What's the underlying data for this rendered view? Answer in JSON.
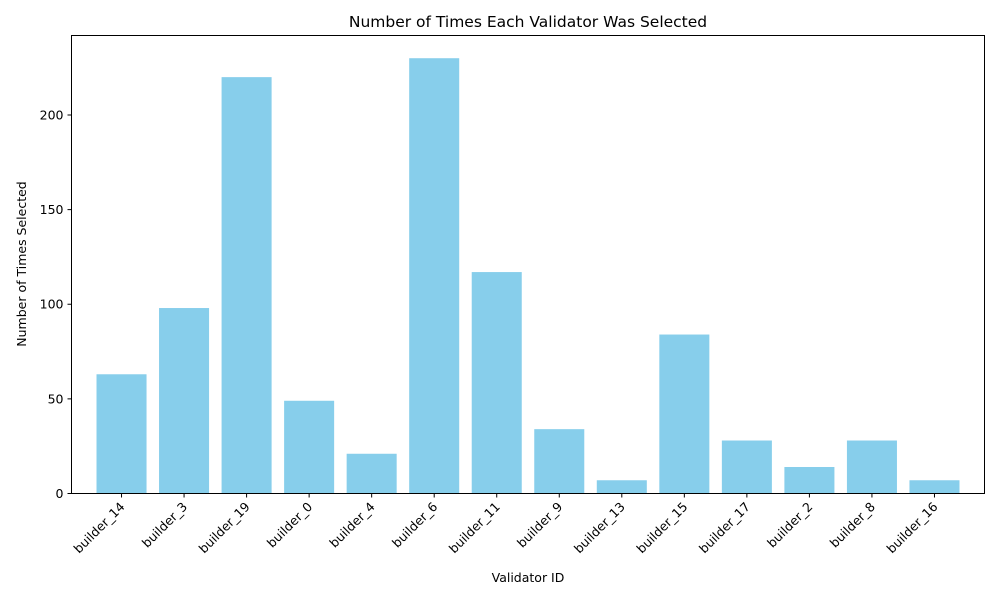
{
  "chart_data": {
    "type": "bar",
    "title": "Number of Times Each Validator Was Selected",
    "xlabel": "Validator ID",
    "ylabel": "Number of Times Selected",
    "categories": [
      "builder_14",
      "builder_3",
      "builder_19",
      "builder_0",
      "builder_4",
      "builder_6",
      "builder_11",
      "builder_9",
      "builder_13",
      "builder_15",
      "builder_17",
      "builder_2",
      "builder_8",
      "builder_16"
    ],
    "values": [
      63,
      98,
      220,
      49,
      21,
      230,
      117,
      34,
      7,
      84,
      28,
      14,
      28,
      7
    ],
    "ylim": [
      0,
      242
    ],
    "yticks": [
      0,
      50,
      100,
      150,
      200
    ],
    "bar_color": "#87ceeb",
    "grid": false,
    "legend": "none"
  }
}
